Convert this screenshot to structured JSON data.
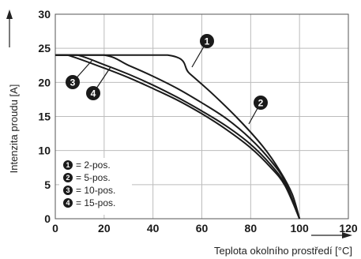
{
  "chart_data": {
    "type": "line",
    "xlabel": "Teplota okolního prostředí [°C]",
    "ylabel": "Intenzita proudu [A]",
    "xlim": [
      0,
      120
    ],
    "ylim": [
      0,
      30
    ],
    "x_ticks": [
      "0",
      "20",
      "40",
      "60",
      "80",
      "100",
      "120"
    ],
    "y_ticks": [
      "0",
      "5",
      "10",
      "15",
      "20",
      "25",
      "30"
    ],
    "grid": true,
    "legend_position": "bottom-left",
    "series": [
      {
        "name": "= 2-pos.",
        "marker": "1",
        "x": [
          -10,
          46,
          55,
          65,
          75,
          85,
          92,
          97,
          100
        ],
        "y": [
          24,
          24,
          21.3,
          18.1,
          14.6,
          10.6,
          7.0,
          3.6,
          0
        ]
      },
      {
        "name": "= 5-pos.",
        "marker": "2",
        "x": [
          -10,
          20,
          30,
          40,
          50,
          60,
          70,
          80,
          88,
          94,
          100
        ],
        "y": [
          24,
          24,
          22.5,
          20.9,
          19.1,
          17.0,
          14.7,
          11.7,
          8.6,
          5.5,
          0
        ]
      },
      {
        "name": "= 10-pos.",
        "marker": "3",
        "x": [
          -10,
          9,
          20,
          30,
          40,
          50,
          60,
          70,
          80,
          88,
          94,
          100
        ],
        "y": [
          24,
          24,
          22.6,
          21.2,
          19.6,
          17.8,
          15.8,
          13.6,
          10.9,
          8.0,
          5.1,
          0
        ]
      },
      {
        "name": "= 15-pos.",
        "marker": "4",
        "x": [
          -10,
          5,
          20,
          30,
          40,
          50,
          60,
          70,
          80,
          88,
          94,
          100
        ],
        "y": [
          24,
          24,
          22.1,
          20.7,
          19.1,
          17.4,
          15.4,
          13.1,
          10.4,
          7.6,
          4.9,
          0
        ]
      }
    ]
  }
}
